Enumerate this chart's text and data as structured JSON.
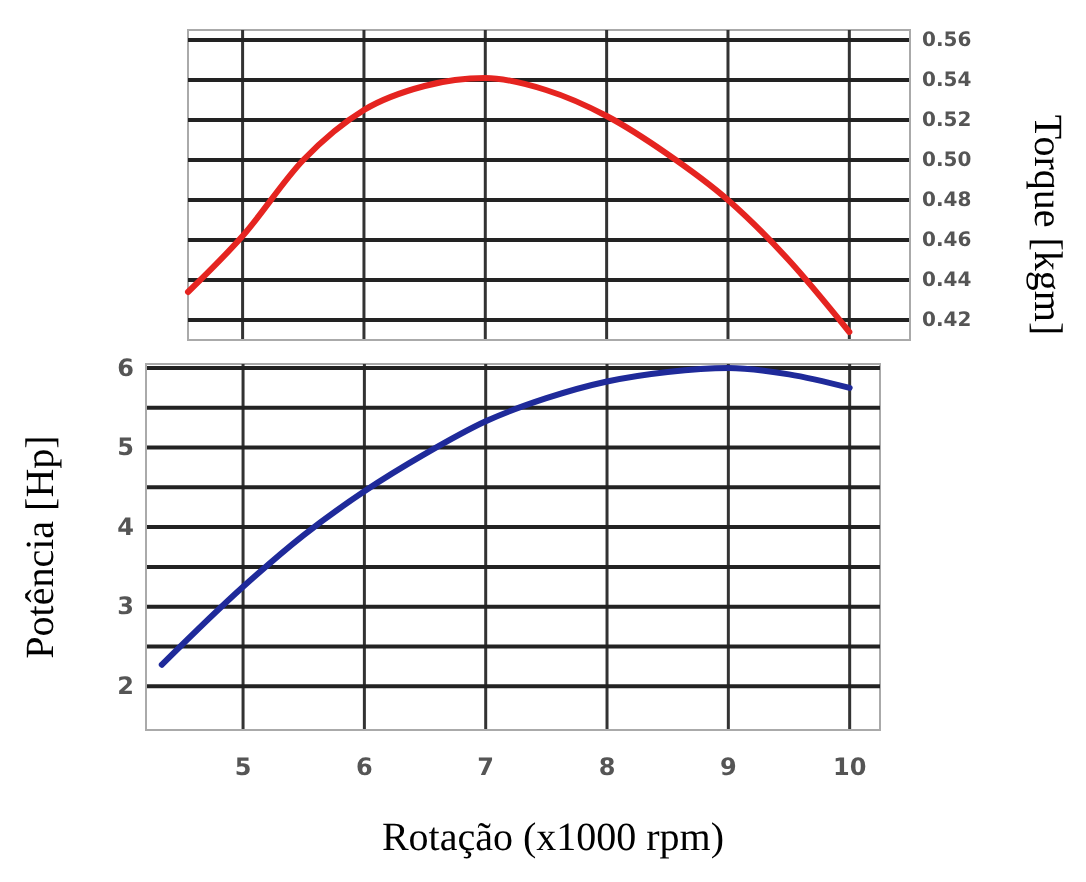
{
  "chart_data": [
    {
      "type": "line",
      "ylabel": "Torque [kgm]",
      "x": [
        4.55,
        5,
        5.5,
        6,
        6.5,
        7,
        7.5,
        8,
        8.5,
        9,
        9.5,
        10
      ],
      "xlim": [
        4.55,
        10.5
      ],
      "xticks": [
        5,
        6,
        7,
        8,
        9,
        10
      ],
      "ylim": [
        0.41,
        0.565
      ],
      "yticks": [
        0.42,
        0.44,
        0.46,
        0.48,
        {
          "value": 0.5,
          "label": "0.50"
        },
        0.52,
        0.54,
        0.56
      ],
      "tick_labels": "y",
      "grid": true,
      "marker": "none",
      "line_style": "solid",
      "series": [
        {
          "color": "#e52420",
          "values": [
            0.434,
            0.462,
            0.5,
            0.525,
            0.537,
            0.541,
            0.535,
            0.522,
            0.503,
            0.48,
            0.45,
            0.414
          ]
        }
      ]
    },
    {
      "type": "line",
      "xlabel": "Rotação (x1000 rpm)",
      "ylabel": "Potência [Hp]",
      "x": [
        4.33,
        5,
        5.5,
        6,
        6.5,
        7,
        7.5,
        8,
        8.5,
        9,
        9.5,
        10
      ],
      "xlim": [
        4.2,
        10.25
      ],
      "xticks": [
        5,
        6,
        7,
        8,
        9,
        10
      ],
      "ylim": [
        1.45,
        6.05
      ],
      "yticks": [
        2,
        {
          "value": 2.5,
          "label": null
        },
        3,
        {
          "value": 3.5,
          "label": null
        },
        4,
        {
          "value": 4.5,
          "label": null
        },
        5,
        {
          "value": 5.5,
          "label": null
        },
        6
      ],
      "grid": true,
      "marker": "none",
      "line_style": "solid",
      "series": [
        {
          "color": "#1f2a9a",
          "values": [
            2.27,
            3.25,
            3.9,
            4.45,
            4.92,
            5.33,
            5.62,
            5.83,
            5.95,
            6.0,
            5.92,
            5.75
          ]
        }
      ]
    }
  ]
}
